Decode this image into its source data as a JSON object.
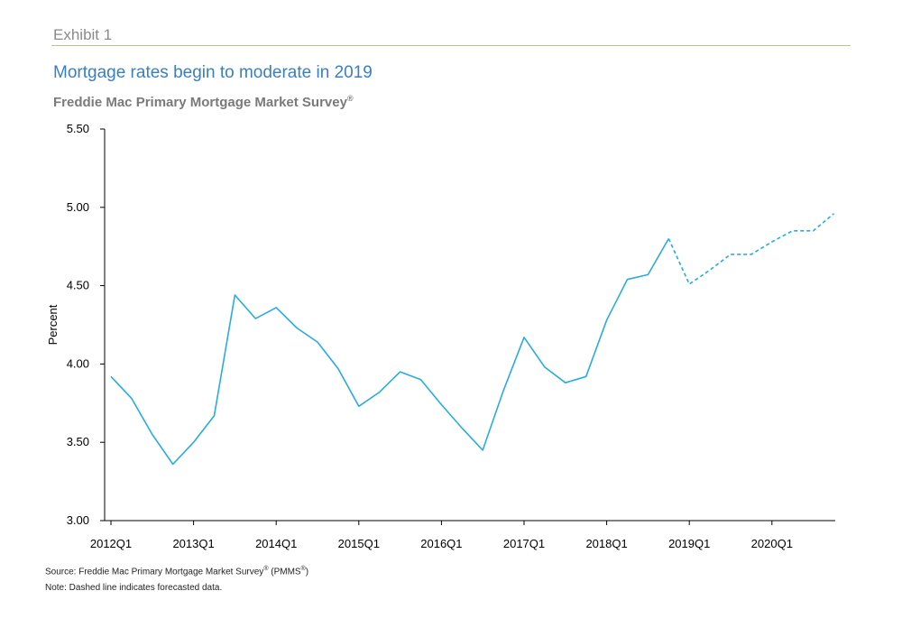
{
  "header": {
    "exhibit": "Exhibit 1",
    "title": "Mortgage rates begin to moderate in 2019",
    "subtitle": "Freddie Mac Primary Mortgage Market Survey",
    "subtitle_mark": "®"
  },
  "footer": {
    "source": "Source: Freddie Mac Primary Mortgage Market Survey",
    "source_mark": "®",
    "source_abbr_open": " (PMMS",
    "source_abbr_mark": "®",
    "source_abbr_close": ")",
    "note": "Note: Dashed line indicates forecasted data."
  },
  "colors": {
    "title": "#3a7fbf",
    "series": "#29abe2",
    "rule": "#b7c58a"
  },
  "chart_data": {
    "type": "line",
    "title": "Mortgage rates begin to moderate in 2019",
    "xlabel": "",
    "ylabel": "Percent",
    "ylim": [
      3.0,
      5.5
    ],
    "yticks": [
      "3.00",
      "3.50",
      "4.00",
      "4.50",
      "5.00",
      "5.50"
    ],
    "xtick_labels": [
      "2012Q1",
      "2013Q1",
      "2014Q1",
      "2015Q1",
      "2016Q1",
      "2017Q1",
      "2018Q1",
      "2019Q1",
      "2020Q1"
    ],
    "x": [
      "2012Q1",
      "2012Q2",
      "2012Q3",
      "2012Q4",
      "2013Q1",
      "2013Q2",
      "2013Q3",
      "2013Q4",
      "2014Q1",
      "2014Q2",
      "2014Q3",
      "2014Q4",
      "2015Q1",
      "2015Q2",
      "2015Q3",
      "2015Q4",
      "2016Q1",
      "2016Q2",
      "2016Q3",
      "2016Q4",
      "2017Q1",
      "2017Q2",
      "2017Q3",
      "2017Q4",
      "2018Q1",
      "2018Q2",
      "2018Q3",
      "2018Q4",
      "2019Q1",
      "2019Q2",
      "2019Q3",
      "2019Q4",
      "2020Q1",
      "2020Q2",
      "2020Q3",
      "2020Q4"
    ],
    "series": [
      {
        "style": "solid",
        "x": [
          "2012Q1",
          "2012Q2",
          "2012Q3",
          "2012Q4",
          "2013Q1",
          "2013Q2",
          "2013Q3",
          "2013Q4",
          "2014Q1",
          "2014Q2",
          "2014Q3",
          "2014Q4",
          "2015Q1",
          "2015Q2",
          "2015Q3",
          "2015Q4",
          "2016Q1",
          "2016Q2",
          "2016Q3",
          "2016Q4",
          "2017Q1",
          "2017Q2",
          "2017Q3",
          "2017Q4",
          "2018Q1",
          "2018Q2",
          "2018Q3",
          "2018Q4"
        ],
        "values": [
          3.92,
          3.78,
          3.55,
          3.36,
          3.5,
          3.67,
          4.44,
          4.29,
          4.36,
          4.23,
          4.14,
          3.97,
          3.73,
          3.82,
          3.95,
          3.9,
          3.74,
          3.59,
          3.45,
          3.83,
          4.17,
          3.98,
          3.88,
          3.92,
          4.28,
          4.54,
          4.57,
          4.8
        ]
      },
      {
        "style": "dashed",
        "x": [
          "2018Q4",
          "2019Q1",
          "2019Q2",
          "2019Q3",
          "2019Q4",
          "2020Q1",
          "2020Q2",
          "2020Q3",
          "2020Q4"
        ],
        "values": [
          4.8,
          4.51,
          4.6,
          4.7,
          4.7,
          4.78,
          4.85,
          4.85,
          4.96
        ]
      }
    ],
    "grid": false,
    "legend": "none"
  }
}
